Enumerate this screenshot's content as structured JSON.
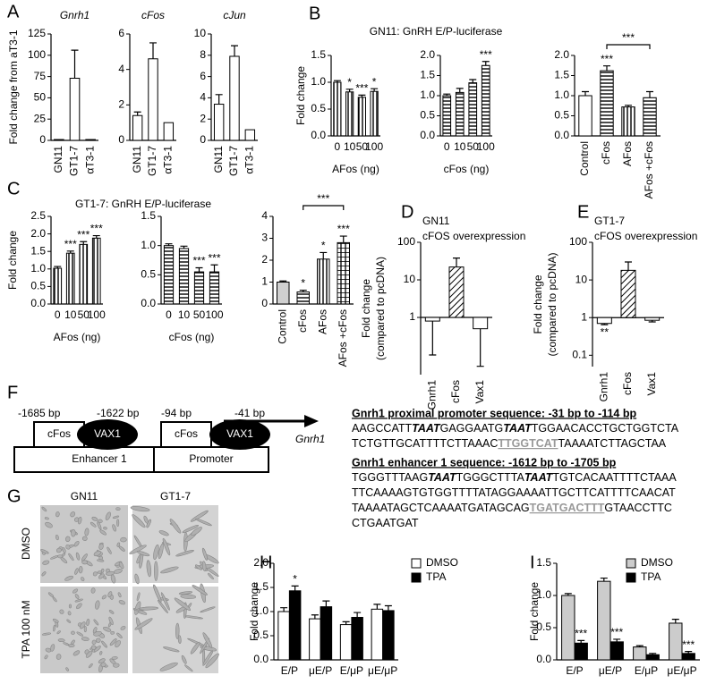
{
  "chart_data": [
    {
      "type": "bar",
      "panel": "A",
      "ylabel": "Fold change from aT3-1",
      "title": "Gnrh1",
      "categories": [
        "GN11",
        "GT1-7",
        "αT3-1"
      ],
      "values": [
        1,
        73,
        1
      ],
      "errors": [
        null,
        33,
        null
      ],
      "fill": "white",
      "rotate_labels": true,
      "ylim": [
        0,
        125
      ],
      "yticks": [
        0,
        25,
        50,
        75,
        100,
        125
      ]
    },
    {
      "type": "bar",
      "title": "cFos",
      "categories": [
        "GN11",
        "GT1-7",
        "αT3-1"
      ],
      "values": [
        1.4,
        4.6,
        1
      ],
      "errors": [
        0.2,
        0.9,
        null
      ],
      "fill": "white",
      "rotate_labels": true,
      "ylim": [
        0,
        6
      ],
      "yticks": [
        0,
        2,
        4,
        6
      ]
    },
    {
      "type": "bar",
      "title": "cJun",
      "categories": [
        "GN11",
        "GT1-7",
        "αT3-1"
      ],
      "values": [
        3.4,
        7.9,
        1
      ],
      "errors": [
        0.9,
        1.0,
        null
      ],
      "fill": "white",
      "rotate_labels": true,
      "ylim": [
        0,
        10
      ],
      "yticks": [
        0,
        2,
        4,
        6,
        8,
        10
      ]
    },
    {
      "type": "bar",
      "panel": "B",
      "suptitle": "GN11: GnRH E/P-luciferase",
      "ylabel": "Fold change",
      "xlabel": "AFos (ng)",
      "categories": [
        "0",
        "10",
        "50",
        "100"
      ],
      "values": [
        1.0,
        0.82,
        0.72,
        0.83
      ],
      "errors": [
        0.03,
        0.05,
        0.04,
        0.05
      ],
      "significance": [
        null,
        "*",
        "***",
        "*"
      ],
      "fill": "vstripe",
      "ylim": [
        0,
        1.5
      ],
      "yticks": [
        {
          "value": 0,
          "label": "0.0"
        },
        {
          "value": 0.5,
          "label": "0.5"
        },
        {
          "value": 1,
          "label": "1.0"
        },
        {
          "value": 1.5,
          "label": "1.5"
        }
      ]
    },
    {
      "type": "bar",
      "xlabel": "cFos (ng)",
      "categories": [
        "0",
        "10",
        "50",
        "100"
      ],
      "values": [
        1.0,
        1.08,
        1.32,
        1.75
      ],
      "errors": [
        0.04,
        0.1,
        0.08,
        0.1
      ],
      "significance": [
        null,
        null,
        null,
        "***"
      ],
      "fill": "hstripe",
      "ylim": [
        0,
        2
      ],
      "yticks": [
        {
          "value": 0,
          "label": "0.0"
        },
        {
          "value": 0.5,
          "label": "0.5"
        },
        {
          "value": 1,
          "label": "1.0"
        },
        {
          "value": 1.5,
          "label": "1.5"
        },
        {
          "value": 2,
          "label": "2.0"
        }
      ]
    },
    {
      "type": "bar",
      "categories": [
        "Control",
        "cFos",
        "AFos",
        "AFos +cFos"
      ],
      "values": [
        1.0,
        1.62,
        0.72,
        0.95
      ],
      "errors": [
        0.1,
        0.12,
        0.04,
        0.15
      ],
      "significance": [
        null,
        "***",
        null,
        null
      ],
      "fills": [
        "white",
        "hstripe",
        "vstripe",
        "hstripe"
      ],
      "rotate_labels": true,
      "bracket": {
        "between": [
          "cFos",
          "AFos +cFos"
        ],
        "label": "***"
      },
      "ylim": [
        0,
        2
      ],
      "yticks": [
        {
          "value": 0,
          "label": "0.0"
        },
        {
          "value": 0.5,
          "label": "0.5"
        },
        {
          "value": 1,
          "label": "1.0"
        },
        {
          "value": 1.5,
          "label": "1.5"
        },
        {
          "value": 2,
          "label": "2.0"
        }
      ]
    },
    {
      "type": "bar",
      "panel": "C",
      "suptitle": "GT1-7: GnRH E/P-luciferase",
      "ylabel": "Fold change",
      "xlabel": "AFos (ng)",
      "categories": [
        "0",
        "10",
        "50",
        "100"
      ],
      "values": [
        1.02,
        1.45,
        1.7,
        1.88
      ],
      "errors": [
        0.05,
        0.06,
        0.08,
        0.07
      ],
      "significance": [
        null,
        "***",
        "***",
        "***"
      ],
      "fill": "vstripe",
      "ylim": [
        0,
        2.5
      ],
      "yticks": [
        {
          "value": 0,
          "label": "0.0"
        },
        {
          "value": 0.5,
          "label": "0.5"
        },
        {
          "value": 1,
          "label": "1.0"
        },
        {
          "value": 1.5,
          "label": "1.5"
        },
        {
          "value": 2,
          "label": "2.0"
        },
        {
          "value": 2.5,
          "label": "2.5"
        }
      ]
    },
    {
      "type": "bar",
      "xlabel": "cFos (ng)",
      "categories": [
        "0",
        "10",
        "50",
        "100"
      ],
      "values": [
        1.0,
        0.95,
        0.55,
        0.55
      ],
      "errors": [
        0.03,
        0.04,
        0.07,
        0.12
      ],
      "significance": [
        null,
        null,
        "***",
        "***"
      ],
      "fill": "hstripe",
      "ylim": [
        0,
        1.5
      ],
      "yticks": [
        {
          "value": 0,
          "label": "0.0"
        },
        {
          "value": 0.5,
          "label": "0.5"
        },
        {
          "value": 1,
          "label": "1.0"
        },
        {
          "value": 1.5,
          "label": "1.5"
        }
      ]
    },
    {
      "type": "bar",
      "categories": [
        "Control",
        "cFos",
        "AFos",
        "AFos +cFos"
      ],
      "values": [
        1.0,
        0.55,
        2.05,
        2.8
      ],
      "errors": [
        0.05,
        0.08,
        0.3,
        0.3
      ],
      "significance": [
        null,
        "*",
        "*",
        "***"
      ],
      "fills": [
        "gray",
        "hstripe",
        "vstripe",
        "cross"
      ],
      "rotate_labels": true,
      "bracket": {
        "between": [
          "cFos",
          "AFos +cFos"
        ],
        "label": "***"
      },
      "ylim": [
        0,
        4
      ],
      "yticks": [
        0,
        1,
        2,
        3,
        4
      ]
    },
    {
      "type": "bar",
      "panel": "D",
      "title": [
        "GN11",
        "cFOS overexpression"
      ],
      "ylabel": [
        "Fold change",
        "(compared to pcDNA)"
      ],
      "categories": [
        "Gnrh1",
        "cFos",
        "Vax1"
      ],
      "values": [
        0.8,
        22,
        0.5
      ],
      "errors": [
        0.7,
        16,
        0.45
      ],
      "fills": [
        "white",
        "diag",
        "white"
      ],
      "rotate_labels": true,
      "log": true,
      "baseline": 1,
      "ylim": [
        0.03,
        100
      ],
      "yticks": [
        1,
        10,
        100
      ]
    },
    {
      "type": "bar",
      "panel": "E",
      "title": [
        "GT1-7",
        "cFOS overexpression"
      ],
      "ylabel": [
        "Fold change",
        "(compared to pcDNA)"
      ],
      "categories": [
        "Gnrh1",
        "cFos",
        "Vax1"
      ],
      "values": [
        0.7,
        18,
        0.85
      ],
      "errors": [
        0.05,
        12,
        0.08
      ],
      "significance": [
        "**",
        null,
        null
      ],
      "fills": [
        "white",
        "diag",
        "white"
      ],
      "rotate_labels": true,
      "log": true,
      "baseline": 1,
      "ylim": [
        0.05,
        100
      ],
      "yticks": [
        0.1,
        1,
        10,
        100
      ]
    },
    {
      "type": "bar",
      "panel": "H",
      "ylabel": "Fold change",
      "categories": [
        "E/P",
        "μE/P",
        "E/μP",
        "μE/μP"
      ],
      "series": [
        {
          "name": "DMSO",
          "color": "#ffffff",
          "values": [
            1.0,
            0.85,
            0.73,
            1.05
          ],
          "errors": [
            0.08,
            0.08,
            0.06,
            0.1
          ]
        },
        {
          "name": "TPA",
          "color": "#000000",
          "values": [
            1.43,
            1.1,
            0.88,
            1.02
          ],
          "errors": [
            0.1,
            0.12,
            0.1,
            0.1
          ],
          "significance": [
            "*",
            null,
            null,
            null
          ]
        }
      ],
      "ylim": [
        0,
        2
      ],
      "yticks": [
        {
          "value": 0,
          "label": "0.0"
        },
        {
          "value": 0.5,
          "label": "0.5"
        },
        {
          "value": 1,
          "label": "1.0"
        },
        {
          "value": 1.5,
          "label": "1.5"
        },
        {
          "value": 2,
          "label": "2.0"
        }
      ]
    },
    {
      "type": "bar",
      "panel": "I",
      "ylabel": "Fold change",
      "categories": [
        "E/P",
        "μE/P",
        "E/μP",
        "μE/μP"
      ],
      "series": [
        {
          "name": "DMSO",
          "color": "#cccccc",
          "values": [
            1.0,
            1.22,
            0.2,
            0.57
          ],
          "errors": [
            0.03,
            0.05,
            0.02,
            0.06
          ]
        },
        {
          "name": "TPA",
          "color": "#000000",
          "values": [
            0.26,
            0.28,
            0.08,
            0.1
          ],
          "errors": [
            0.04,
            0.04,
            0.02,
            0.03
          ],
          "significance": [
            "***",
            "***",
            null,
            "***"
          ]
        }
      ],
      "ylim": [
        0,
        1.5
      ],
      "yticks": [
        {
          "value": 0,
          "label": "0.0"
        },
        {
          "value": 0.5,
          "label": "0.5"
        },
        {
          "value": 1,
          "label": "1.0"
        },
        {
          "value": 1.5,
          "label": "1.5"
        }
      ]
    }
  ],
  "panel_f": {
    "letter": "F",
    "diagram": {
      "enhancer_start": "-1685 bp",
      "enhancer_end": "-1622 bp",
      "promoter_start": "-94 bp",
      "promoter_end": "-41 bp",
      "enhancer_label": "Enhancer 1",
      "promoter_label": "Promoter",
      "gene": "Gnrh1",
      "factors": [
        "cFos",
        "VAX1"
      ]
    },
    "sequences": [
      {
        "heading": "Gnrh1 proximal promoter sequence: -31 bp to -114 bp",
        "lines": [
          [
            {
              "text": "AAGCCATT"
            },
            {
              "text": "TAAT",
              "style": "motif"
            },
            {
              "text": "GAGGAATG"
            },
            {
              "text": "TAAT",
              "style": "motif"
            },
            {
              "text": "TGGAACACCTGCTGGTCTA"
            }
          ],
          [
            {
              "text": "TCTGTTGCATTTTCTTAAAC"
            },
            {
              "text": "TTGGTCAT",
              "style": "site"
            },
            {
              "text": "TAAAATCTTAGCTAA"
            }
          ]
        ]
      },
      {
        "heading": "Gnrh1 enhancer 1 sequence: -1612 bp to -1705 bp",
        "lines": [
          [
            {
              "text": "TGGGTTTAAG"
            },
            {
              "text": "TAAT",
              "style": "motif"
            },
            {
              "text": "TGGGCTTTA"
            },
            {
              "text": "TAAT",
              "style": "motif"
            },
            {
              "text": "TGTCACAATTTTCTAAA"
            }
          ],
          [
            {
              "text": "TTCAAAAGTGTGGTTTTATAGGAAAATTGCTTCATTTTCAACAT"
            }
          ],
          [
            {
              "text": "TAAAATAGCTCAAAATGATAGCAG"
            },
            {
              "text": "TGATGACTTT",
              "style": "site"
            },
            {
              "text": "GTAACCTTC"
            }
          ],
          [
            {
              "text": "CTGAATGAT"
            }
          ]
        ]
      }
    ]
  },
  "panel_g": {
    "letter": "G",
    "columns": [
      "GN11",
      "GT1-7"
    ],
    "rows": [
      "DMSO",
      "TPA 100 nM"
    ]
  }
}
